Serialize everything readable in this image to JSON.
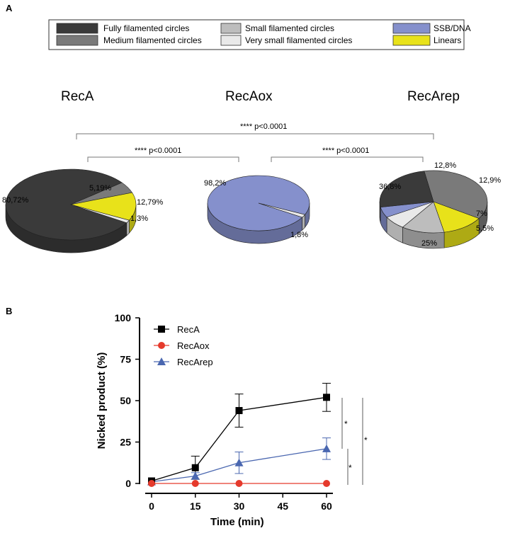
{
  "panel_a": {
    "label": "A",
    "legend": [
      {
        "label": "Fully filamented circles",
        "color": "#3a3a3a"
      },
      {
        "label": "Medium filamented circles",
        "color": "#7a7a7a"
      },
      {
        "label": "Small filamented circles",
        "color": "#bdbdbd"
      },
      {
        "label": "Very small filamented circles",
        "color": "#e9e9e9"
      },
      {
        "label": "SSB/DNA",
        "color": "#8590cc"
      },
      {
        "label": "Linears",
        "color": "#e8e21a"
      }
    ],
    "significance": {
      "top": "**** p<0.0001",
      "left": "**** p<0.0001",
      "right": "**** p<0.0001"
    }
  },
  "chart_data": [
    {
      "type": "pie",
      "title": "RecA",
      "slices": [
        {
          "category": "Fully filamented circles",
          "value": 80.72,
          "label": "80,72%"
        },
        {
          "category": "Medium filamented circles",
          "value": 5.19,
          "label": "5,19%"
        },
        {
          "category": "Linears",
          "value": 12.79,
          "label": "12,79%"
        },
        {
          "category": "Very small filamented circles",
          "value": 1.3,
          "label": "1,3%"
        }
      ]
    },
    {
      "type": "pie",
      "title": "RecAox",
      "slices": [
        {
          "category": "SSB/DNA",
          "value": 98.2,
          "label": "98,2%"
        },
        {
          "category": "Very small filamented circles",
          "value": 1.8,
          "label": "1,8%"
        }
      ]
    },
    {
      "type": "pie",
      "title": "RecArep",
      "slices": [
        {
          "category": "Medium filamented circles",
          "value": 36.8,
          "label": "36,8%"
        },
        {
          "category": "Linears",
          "value": 12.8,
          "label": "12,8%"
        },
        {
          "category": "Small filamented circles",
          "value": 12.9,
          "label": "12,9%"
        },
        {
          "category": "Very small filamented circles",
          "value": 7,
          "label": "7%"
        },
        {
          "category": "SSB/DNA",
          "value": 5.5,
          "label": "5,5%"
        },
        {
          "category": "Fully filamented circles",
          "value": 25,
          "label": "25%"
        }
      ]
    },
    {
      "type": "line",
      "panel": "B",
      "xlabel": "Time (min)",
      "ylabel": "Nicked product (%)",
      "xlim": [
        0,
        60
      ],
      "ylim": [
        0,
        100
      ],
      "xticks": [
        0,
        15,
        30,
        45,
        60
      ],
      "yticks": [
        0,
        25,
        50,
        75,
        100
      ],
      "x": [
        0,
        15,
        30,
        60
      ],
      "series": [
        {
          "name": "RecA",
          "color": "#000000",
          "marker": "square",
          "values": [
            1.5,
            9.5,
            44,
            52
          ],
          "errors": [
            0,
            7,
            10,
            8.5
          ]
        },
        {
          "name": "RecAox",
          "color": "#e53a2c",
          "marker": "circle",
          "values": [
            0,
            0,
            0,
            0
          ],
          "errors": [
            0,
            0,
            0,
            0
          ]
        },
        {
          "name": "RecArep",
          "color": "#4a67b0",
          "marker": "triangle",
          "values": [
            1,
            4.5,
            12.5,
            21
          ],
          "errors": [
            0,
            2,
            6.5,
            6.5
          ]
        }
      ],
      "significance": [
        "*",
        "*",
        "*"
      ]
    }
  ],
  "panel_b": {
    "label": "B"
  }
}
